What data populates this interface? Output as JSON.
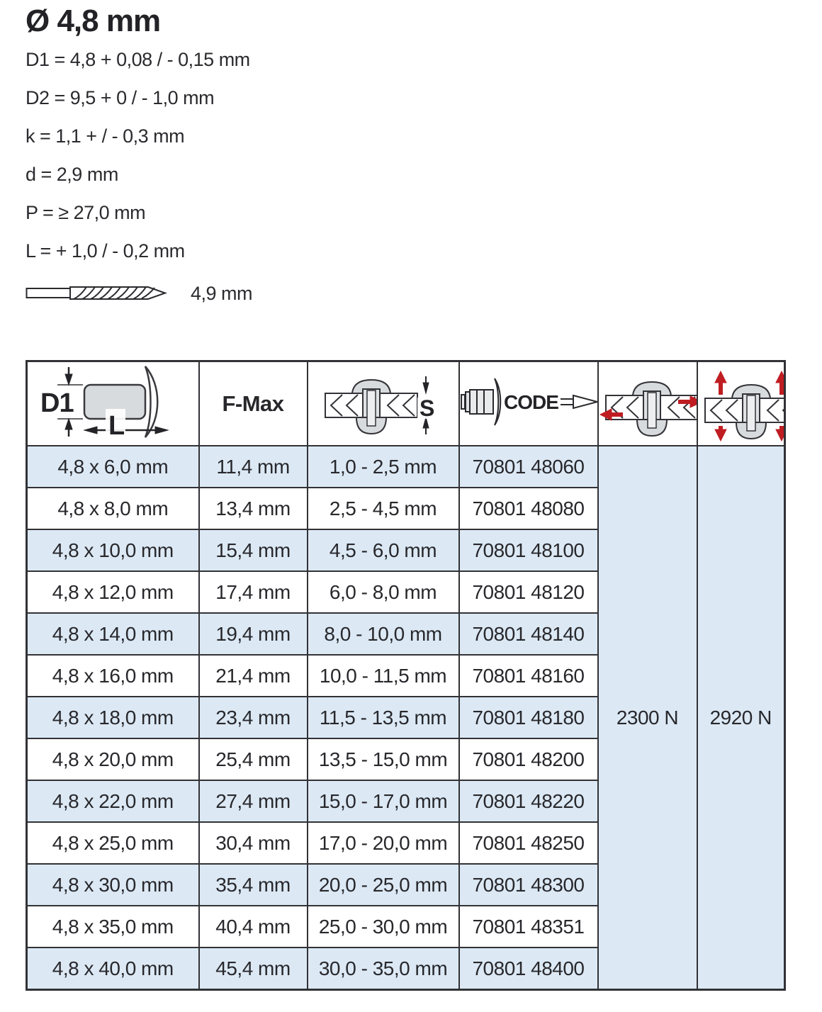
{
  "page": {
    "title": "Ø 4,8 mm",
    "specs": [
      "D1 =  4,8 + 0,08 / - 0,15 mm",
      "D2 =  9,5 + 0 / - 1,0 mm",
      "k =  1,1 + / - 0,3 mm",
      "d = 2,9 mm",
      "P = ≥ 27,0 mm",
      "L = + 1,0 / - 0,2  mm"
    ],
    "drill_label": "4,9 mm"
  },
  "table": {
    "headers": {
      "dim_d1": "D1",
      "dim_l": "L",
      "fmax": "F-Max",
      "grip": "S",
      "code": "CODE"
    },
    "shear_strength": "2300 N",
    "tensile_strength": "2920 N",
    "rows": [
      {
        "size": "4,8 x 6,0 mm",
        "fmax": "11,4 mm",
        "grip": "1,0 - 2,5 mm",
        "code": "70801 48060"
      },
      {
        "size": "4,8 x 8,0 mm",
        "fmax": "13,4 mm",
        "grip": "2,5 - 4,5 mm",
        "code": "70801 48080"
      },
      {
        "size": "4,8 x 10,0 mm",
        "fmax": "15,4 mm",
        "grip": "4,5 - 6,0 mm",
        "code": "70801 48100"
      },
      {
        "size": "4,8 x 12,0 mm",
        "fmax": "17,4 mm",
        "grip": "6,0 - 8,0 mm",
        "code": "70801 48120"
      },
      {
        "size": "4,8 x 14,0 mm",
        "fmax": "19,4 mm",
        "grip": "8,0 - 10,0 mm",
        "code": "70801 48140"
      },
      {
        "size": "4,8 x 16,0 mm",
        "fmax": "21,4 mm",
        "grip": "10,0 - 11,5 mm",
        "code": "70801 48160"
      },
      {
        "size": "4,8 x 18,0 mm",
        "fmax": "23,4 mm",
        "grip": "11,5 - 13,5 mm",
        "code": "70801 48180"
      },
      {
        "size": "4,8 x 20,0 mm",
        "fmax": "25,4 mm",
        "grip": "13,5 - 15,0 mm",
        "code": "70801 48200"
      },
      {
        "size": "4,8 x 22,0 mm",
        "fmax": "27,4 mm",
        "grip": "15,0 - 17,0 mm",
        "code": "70801 48220"
      },
      {
        "size": "4,8 x 25,0 mm",
        "fmax": "30,4 mm",
        "grip": "17,0 - 20,0 mm",
        "code": "70801 48250"
      },
      {
        "size": "4,8 x 30,0 mm",
        "fmax": "35,4 mm",
        "grip": "20,0 - 25,0 mm",
        "code": "70801 48300"
      },
      {
        "size": "4,8 x 35,0 mm",
        "fmax": "40,4 mm",
        "grip": "25,0 - 30,0 mm",
        "code": "70801 48351"
      },
      {
        "size": "4,8 x 40,0 mm",
        "fmax": "45,4 mm",
        "grip": "30,0 - 35,0 mm",
        "code": "70801 48400"
      }
    ]
  },
  "icons": {
    "rivet-dimension-icon": "side view of rivet with D1 diameter and L length dimension arrows",
    "grip-range-icon": "riveted plates cross-section with S thickness dimension",
    "code-icon": "rivet with mandrel and CODE label",
    "shear-strength-icon": "riveted plates with horizontal red shear arrows",
    "tensile-strength-icon": "riveted plates with vertical red tensile arrows",
    "drill-bit-icon": "twist drill bit"
  },
  "colors": {
    "row_blue": "#dce9f5",
    "border": "#323236",
    "arrow_red": "#bf1d22",
    "metal_gray": "#d8dbdd",
    "text": "#28282c"
  }
}
